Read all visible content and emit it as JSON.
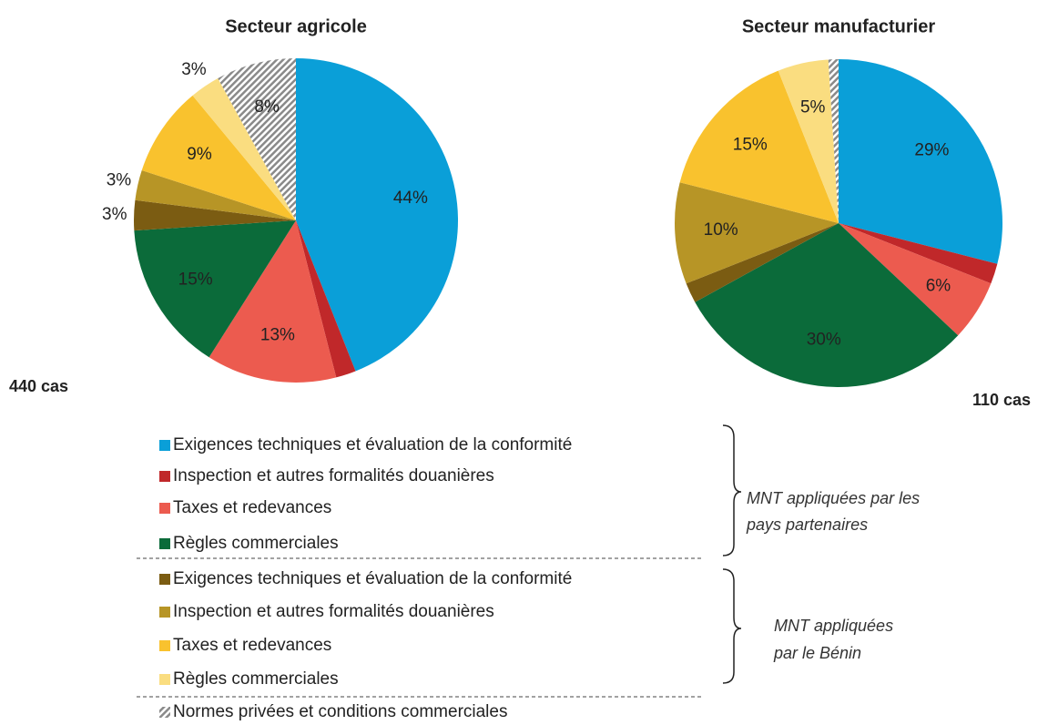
{
  "chart_data": [
    {
      "type": "pie",
      "title": "Secteur agricole",
      "note": "440 cas",
      "categories": [
        "Exigences techniques et évaluation de la conformité",
        "Inspection et autres formalités douanières",
        "Taxes et redevances",
        "Règles commerciales",
        "Exigences techniques et évaluation de la conformité",
        "Inspection et autres formalités douanières",
        "Taxes et redevances",
        "Règles commerciales",
        "Normes privées et conditions commerciales"
      ],
      "values": [
        44,
        2,
        13,
        15,
        3,
        3,
        9,
        3,
        8
      ],
      "value_labels": [
        "44%",
        null,
        "13%",
        "15%",
        "3%",
        "3%",
        "9%",
        "3%",
        "8%"
      ],
      "colors": [
        "#0a9fd8",
        "#c0282a",
        "#ec5b4f",
        "#0b6b3a",
        "#7b5c12",
        "#b79526",
        "#f9c22e",
        "#fadd80",
        "url(#hatch)"
      ]
    },
    {
      "type": "pie",
      "title": "Secteur manufacturier",
      "note": "110 cas",
      "categories": [
        "Exigences techniques et évaluation de la conformité",
        "Inspection et autres formalités douanières",
        "Taxes et redevances",
        "Règles commerciales",
        "Exigences techniques et évaluation de la conformité",
        "Inspection et autres formalités douanières",
        "Taxes et redevances",
        "Règles commerciales",
        "Normes privées et conditions commerciales"
      ],
      "values": [
        29,
        2,
        6,
        30,
        2,
        10,
        15,
        5,
        1
      ],
      "value_labels": [
        "29%",
        null,
        "6%",
        "30%",
        null,
        "10%",
        "15%",
        "5%",
        null
      ],
      "colors": [
        "#0a9fd8",
        "#c0282a",
        "#ec5b4f",
        "#0b6b3a",
        "#7b5c12",
        "#b79526",
        "#f9c22e",
        "#fadd80",
        "url(#hatch)"
      ]
    }
  ],
  "legend_groups": [
    [
      "MNT appliquées par les",
      "pays partenaires"
    ],
    [
      "MNT appliquées",
      "par le Bénin"
    ]
  ]
}
